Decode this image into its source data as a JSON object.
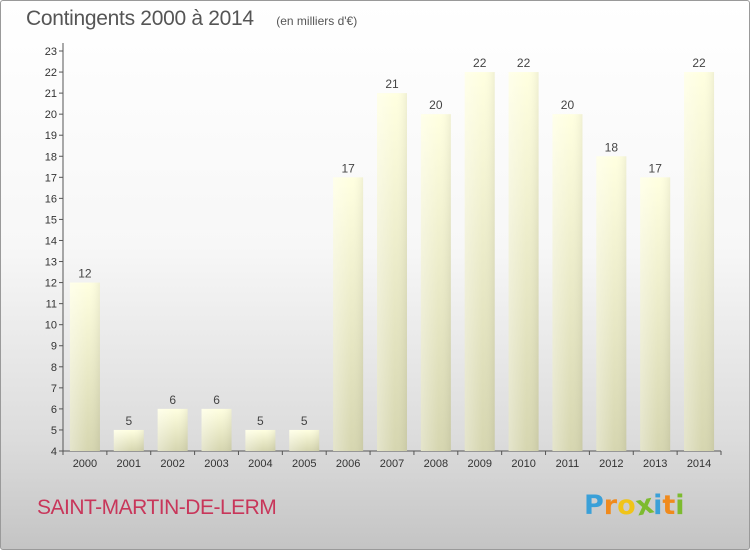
{
  "header": {
    "title": "Contingents 2000 à 2014",
    "unit": "(en milliers d'€)"
  },
  "footer": {
    "commune": "SAINT-MARTIN-DE-LERM",
    "logo_letters": [
      "P",
      "r",
      "o",
      "x",
      "i",
      "t",
      "i"
    ],
    "logo_colors": [
      "#3aa0d8",
      "#f08a1c",
      "#f0c419",
      "#7dbb2f",
      "#3aa0d8",
      "#f08a1c",
      "#7dbb2f"
    ]
  },
  "colors": {
    "bar_top": "#ffffe0",
    "bar_bottom": "#d6d6b0",
    "axis": "#555555",
    "commune": "#c8365a"
  },
  "chart_data": {
    "type": "bar",
    "title": "Contingents 2000 à 2014",
    "subtitle": "(en milliers d'€)",
    "categories": [
      "2000",
      "2001",
      "2002",
      "2003",
      "2004",
      "2005",
      "2006",
      "2007",
      "2008",
      "2009",
      "2010",
      "2011",
      "2012",
      "2013",
      "2014"
    ],
    "values": [
      12,
      5,
      6,
      6,
      5,
      5,
      17,
      21,
      20,
      22,
      22,
      20,
      18,
      17,
      22
    ],
    "ylim": [
      4,
      23
    ],
    "yticks": [
      4,
      5,
      6,
      7,
      8,
      9,
      10,
      11,
      12,
      13,
      14,
      15,
      16,
      17,
      18,
      19,
      20,
      21,
      22,
      23
    ],
    "grid": false,
    "data_labels": true
  }
}
